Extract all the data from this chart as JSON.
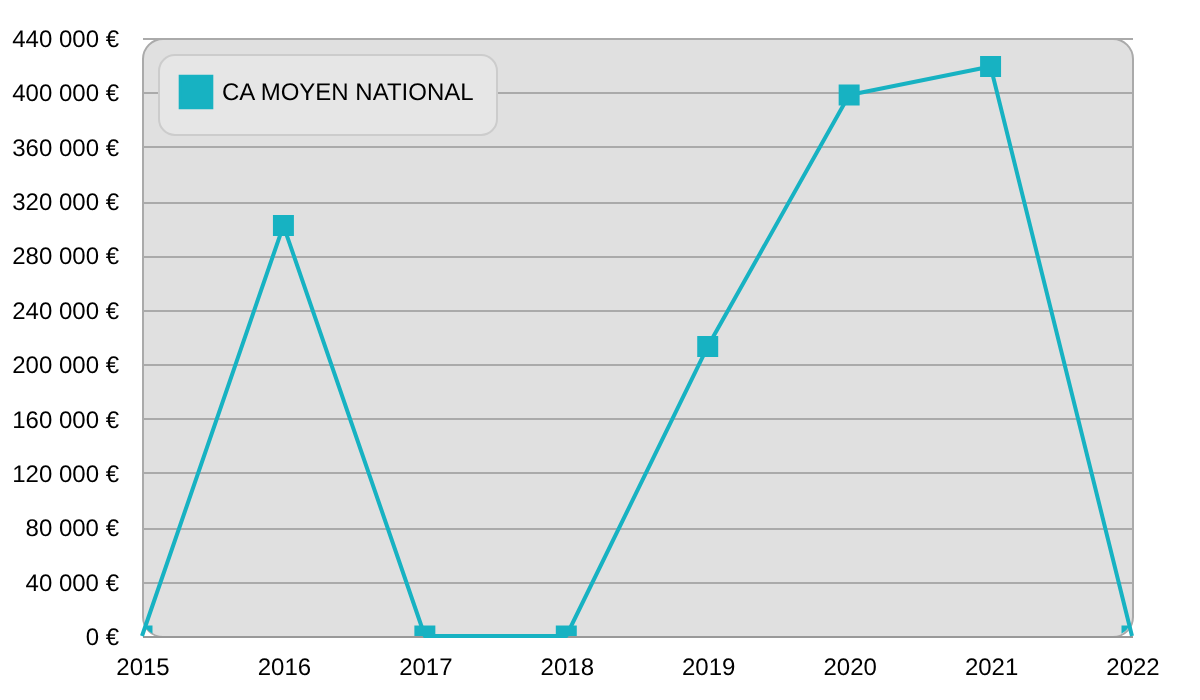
{
  "chart_data": {
    "type": "line",
    "x": [
      2015,
      2016,
      2017,
      2018,
      2019,
      2020,
      2021,
      2022
    ],
    "series": [
      {
        "name": "CA MOYEN NATIONAL",
        "color": "#17b2c2",
        "values": [
          0,
          302000,
          0,
          0,
          213000,
          398000,
          419000,
          0
        ]
      }
    ],
    "xlim": [
      2015,
      2022
    ],
    "xticks": [
      2015,
      2016,
      2017,
      2018,
      2019,
      2020,
      2021,
      2022
    ],
    "ylim": [
      0,
      440000
    ],
    "yticks": [
      {
        "value": 0,
        "label": "0 €"
      },
      {
        "value": 40000,
        "label": "40 000 €"
      },
      {
        "value": 80000,
        "label": "80 000 €"
      },
      {
        "value": 120000,
        "label": "120 000 €"
      },
      {
        "value": 160000,
        "label": "160 000 €"
      },
      {
        "value": 200000,
        "label": "200 000 €"
      },
      {
        "value": 240000,
        "label": "240 000 €"
      },
      {
        "value": 280000,
        "label": "280 000 €"
      },
      {
        "value": 320000,
        "label": "320 000 €"
      },
      {
        "value": 360000,
        "label": "360 000 €"
      },
      {
        "value": 400000,
        "label": "400 000 €"
      },
      {
        "value": 440000,
        "label": "440 000 €"
      }
    ],
    "grid": "y",
    "legend": "top left",
    "marker": "square",
    "line_style": "solid"
  }
}
